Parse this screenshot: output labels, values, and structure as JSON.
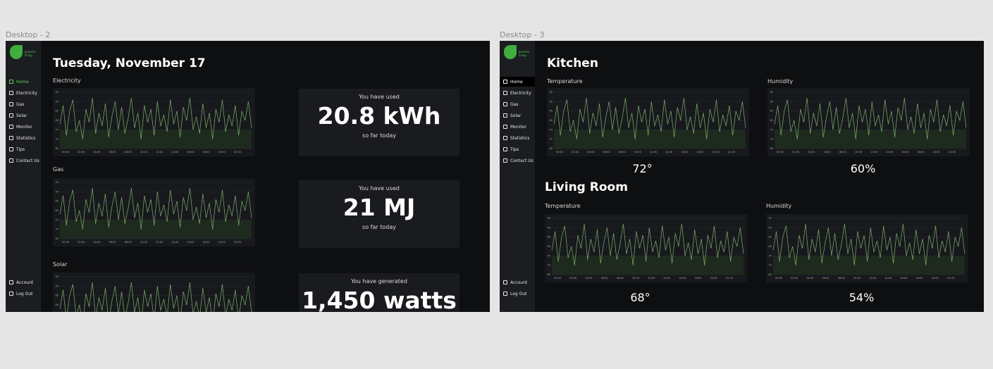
{
  "frames": [
    {
      "label": "Desktop - 2",
      "logo": "greener living",
      "nav": [
        "Home",
        "Electricity",
        "Gas",
        "Solar",
        "Monitor",
        "Statistics",
        "Tips",
        "Contact Us"
      ],
      "nav_bottom": [
        "Account",
        "Log Out"
      ],
      "title": "Tuesday, November 17",
      "sections": [
        {
          "label": "Electricity",
          "stat": {
            "caption": "You have used",
            "value": "20.8 kWh",
            "note": "so far today"
          }
        },
        {
          "label": "Gas",
          "stat": {
            "caption": "You have used",
            "value": "21 MJ",
            "note": "so far today"
          }
        },
        {
          "label": "Solar",
          "stat": {
            "caption": "You have generated",
            "value": "1,450 watts"
          }
        }
      ]
    },
    {
      "label": "Desktop - 3",
      "logo": "greener living",
      "nav": [
        "Home",
        "Electricity",
        "Gas",
        "Solar",
        "Monitor",
        "Statistics",
        "Tips",
        "Contact Us"
      ],
      "nav_bottom": [
        "Account",
        "Log Out"
      ],
      "rooms": [
        {
          "name": "Kitchen",
          "sensors": [
            {
              "label": "Temperature",
              "reading": "72°"
            },
            {
              "label": "Humidity",
              "reading": "60%"
            }
          ]
        },
        {
          "name": "Living Room",
          "sensors": [
            {
              "label": "Temperature",
              "reading": "68°"
            },
            {
              "label": "Humidity",
              "reading": "54%"
            }
          ]
        }
      ]
    }
  ],
  "sample_chart": {
    "type": "line",
    "color": "#7fb069",
    "xticks": [
      "00:00",
      "02:00",
      "04:00",
      "06:00",
      "08:00",
      "10:00",
      "12:00",
      "14:00",
      "16:00",
      "18:00",
      "20:00",
      "22:00"
    ],
    "ylim": [
      65,
      95
    ],
    "yticks": [
      65,
      70,
      75,
      80,
      85,
      90,
      95
    ],
    "values": [
      78,
      88,
      72,
      85,
      91,
      74,
      80,
      70,
      86,
      79,
      92,
      73,
      84,
      77,
      89,
      71,
      82,
      90,
      75,
      87,
      73,
      81,
      92,
      76,
      84,
      70,
      88,
      79,
      86,
      72,
      90,
      77,
      83,
      74,
      91,
      78,
      85,
      71,
      87,
      80,
      92,
      75,
      82,
      73,
      89,
      76,
      84,
      70,
      86,
      79,
      91,
      74,
      83,
      77,
      88,
      72,
      85,
      80,
      90,
      76
    ]
  }
}
